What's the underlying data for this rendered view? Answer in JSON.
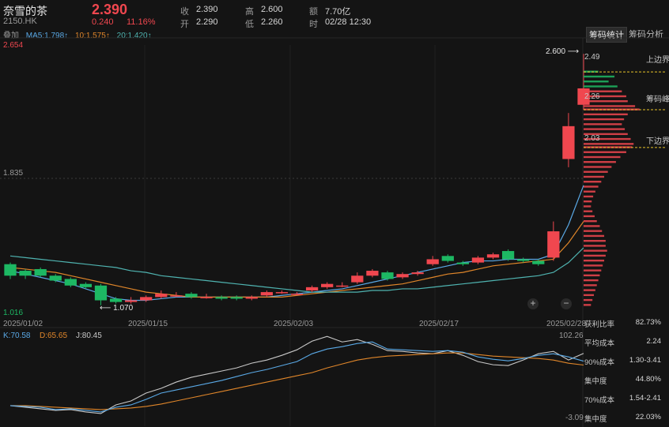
{
  "header": {
    "name": "奈雪的茶",
    "code": "2150.HK",
    "price": "2.390",
    "change": "0.240",
    "change_pct": "11.16%",
    "overlay_label": "叠加"
  },
  "quote": {
    "close_label": "收",
    "close": "2.390",
    "open_label": "开",
    "open": "2.290",
    "high_label": "高",
    "high": "2.600",
    "low_label": "低",
    "low": "2.260",
    "amount_label": "额",
    "amount": "7.70亿",
    "time_label": "时",
    "time": "02/28 12:30"
  },
  "ma": {
    "ma5": "MA5:1.798↑",
    "ma10": "10:1.575↑",
    "ma20": "20:1.420↑"
  },
  "tabs": {
    "chips": "筹码统计",
    "analysis": "筹码分析"
  },
  "axis": {
    "y_top": "2.654",
    "y_mid": "1.835",
    "y_bottom": "1.016",
    "high_marker": "2.600",
    "low_marker": "1.070",
    "dates": [
      "2025/01/02",
      "2025/01/15",
      "2025/02/03",
      "2025/02/17",
      "2025/02/28"
    ]
  },
  "chips": {
    "upper_price": "2.49",
    "upper_label": "上边界",
    "peak_price": "2.26",
    "peak_label": "筹码峰",
    "lower_price": "2.03",
    "lower_label": "下边界"
  },
  "stats": [
    {
      "label": "获利比率",
      "value": "82.73%"
    },
    {
      "label": "平均成本",
      "value": "2.24"
    },
    {
      "label": "90%成本",
      "value": "1.30-3.41"
    },
    {
      "label": "集中度",
      "value": "44.80%"
    },
    {
      "label": "70%成本",
      "value": "1.54-2.41"
    },
    {
      "label": "集中度",
      "value": "22.03%"
    }
  ],
  "kdj": {
    "k": "K:70.58",
    "d": "D:65.65",
    "j": "J:80.45",
    "top": "102.26",
    "bottom": "-3.09"
  },
  "colors": {
    "up": "#f0474f",
    "down": "#1db863",
    "ma5": "#5aa9e6",
    "ma10": "#e0862a",
    "ma20": "#4fb3b0"
  },
  "chart_data": {
    "type": "candlestick",
    "title": "奈雪的茶 2150.HK",
    "ylim": [
      1.016,
      2.654
    ],
    "candles": [
      {
        "o": 1.32,
        "c": 1.25,
        "h": 1.33,
        "l": 1.23
      },
      {
        "o": 1.28,
        "c": 1.25,
        "h": 1.29,
        "l": 1.23
      },
      {
        "o": 1.29,
        "c": 1.25,
        "h": 1.3,
        "l": 1.24
      },
      {
        "o": 1.25,
        "c": 1.22,
        "h": 1.26,
        "l": 1.21
      },
      {
        "o": 1.23,
        "c": 1.19,
        "h": 1.24,
        "l": 1.18
      },
      {
        "o": 1.2,
        "c": 1.18,
        "h": 1.21,
        "l": 1.17
      },
      {
        "o": 1.19,
        "c": 1.1,
        "h": 1.2,
        "l": 1.07
      },
      {
        "o": 1.11,
        "c": 1.09,
        "h": 1.12,
        "l": 1.08
      },
      {
        "o": 1.09,
        "c": 1.1,
        "h": 1.12,
        "l": 1.08
      },
      {
        "o": 1.1,
        "c": 1.12,
        "h": 1.13,
        "l": 1.09
      },
      {
        "o": 1.12,
        "c": 1.14,
        "h": 1.16,
        "l": 1.11
      },
      {
        "o": 1.13,
        "c": 1.13,
        "h": 1.15,
        "l": 1.12
      },
      {
        "o": 1.14,
        "c": 1.12,
        "h": 1.15,
        "l": 1.11
      },
      {
        "o": 1.12,
        "c": 1.12,
        "h": 1.14,
        "l": 1.11
      },
      {
        "o": 1.12,
        "c": 1.11,
        "h": 1.13,
        "l": 1.1
      },
      {
        "o": 1.12,
        "c": 1.11,
        "h": 1.13,
        "l": 1.1
      },
      {
        "o": 1.11,
        "c": 1.12,
        "h": 1.13,
        "l": 1.1
      },
      {
        "o": 1.13,
        "c": 1.15,
        "h": 1.16,
        "l": 1.12
      },
      {
        "o": 1.15,
        "c": 1.15,
        "h": 1.16,
        "l": 1.14
      },
      {
        "o": 1.14,
        "c": 1.14,
        "h": 1.15,
        "l": 1.13
      },
      {
        "o": 1.16,
        "c": 1.18,
        "h": 1.19,
        "l": 1.15
      },
      {
        "o": 1.18,
        "c": 1.2,
        "h": 1.21,
        "l": 1.17
      },
      {
        "o": 1.19,
        "c": 1.19,
        "h": 1.21,
        "l": 1.18
      },
      {
        "o": 1.21,
        "c": 1.25,
        "h": 1.27,
        "l": 1.2
      },
      {
        "o": 1.25,
        "c": 1.28,
        "h": 1.29,
        "l": 1.24
      },
      {
        "o": 1.27,
        "c": 1.23,
        "h": 1.28,
        "l": 1.22
      },
      {
        "o": 1.24,
        "c": 1.26,
        "h": 1.27,
        "l": 1.23
      },
      {
        "o": 1.26,
        "c": 1.27,
        "h": 1.28,
        "l": 1.25
      },
      {
        "o": 1.32,
        "c": 1.35,
        "h": 1.37,
        "l": 1.31
      },
      {
        "o": 1.37,
        "c": 1.34,
        "h": 1.38,
        "l": 1.33
      },
      {
        "o": 1.33,
        "c": 1.32,
        "h": 1.34,
        "l": 1.31
      },
      {
        "o": 1.33,
        "c": 1.36,
        "h": 1.37,
        "l": 1.32
      },
      {
        "o": 1.36,
        "c": 1.38,
        "h": 1.39,
        "l": 1.35
      },
      {
        "o": 1.4,
        "c": 1.35,
        "h": 1.41,
        "l": 1.34
      },
      {
        "o": 1.35,
        "c": 1.34,
        "h": 1.36,
        "l": 1.33
      },
      {
        "o": 1.34,
        "c": 1.32,
        "h": 1.35,
        "l": 1.31
      },
      {
        "o": 1.36,
        "c": 1.52,
        "h": 1.58,
        "l": 1.34
      },
      {
        "o": 1.96,
        "c": 2.16,
        "h": 2.24,
        "l": 1.91
      },
      {
        "o": 2.29,
        "c": 2.39,
        "h": 2.6,
        "l": 2.26
      }
    ],
    "ma_lines": {
      "MA5": [
        1.28,
        1.26,
        1.24,
        1.22,
        1.2,
        1.17,
        1.14,
        1.11,
        1.1,
        1.1,
        1.11,
        1.12,
        1.12,
        1.12,
        1.12,
        1.12,
        1.12,
        1.12,
        1.13,
        1.14,
        1.15,
        1.16,
        1.17,
        1.19,
        1.21,
        1.23,
        1.25,
        1.27,
        1.29,
        1.31,
        1.33,
        1.34,
        1.34,
        1.35,
        1.35,
        1.35,
        1.38,
        1.56,
        1.8
      ],
      "MA10": [
        1.3,
        1.29,
        1.28,
        1.27,
        1.25,
        1.23,
        1.21,
        1.19,
        1.17,
        1.15,
        1.14,
        1.13,
        1.12,
        1.12,
        1.12,
        1.12,
        1.12,
        1.12,
        1.12,
        1.13,
        1.14,
        1.15,
        1.16,
        1.17,
        1.18,
        1.19,
        1.2,
        1.22,
        1.24,
        1.26,
        1.27,
        1.29,
        1.31,
        1.32,
        1.33,
        1.34,
        1.35,
        1.45,
        1.58
      ],
      "MA20": [
        1.37,
        1.36,
        1.35,
        1.34,
        1.33,
        1.32,
        1.31,
        1.3,
        1.28,
        1.27,
        1.25,
        1.24,
        1.23,
        1.22,
        1.21,
        1.2,
        1.19,
        1.18,
        1.17,
        1.16,
        1.15,
        1.15,
        1.15,
        1.15,
        1.16,
        1.16,
        1.17,
        1.17,
        1.18,
        1.19,
        1.2,
        1.21,
        1.22,
        1.23,
        1.24,
        1.25,
        1.27,
        1.33,
        1.42
      ]
    },
    "kdj_series": {
      "ylim": [
        -3.09,
        102.26
      ],
      "K": [
        14,
        13,
        12,
        9,
        10,
        8,
        6,
        12,
        15,
        22,
        30,
        34,
        38,
        42,
        46,
        51,
        56,
        60,
        65,
        70,
        80,
        86,
        89,
        93,
        95,
        86,
        85,
        84,
        83,
        84,
        82,
        76,
        73,
        71,
        74,
        78,
        80,
        76,
        70.58
      ],
      "D": [
        14,
        14,
        13,
        12,
        11,
        10,
        9,
        10,
        11,
        13,
        16,
        20,
        24,
        28,
        32,
        36,
        40,
        44,
        48,
        52,
        56,
        62,
        67,
        72,
        75,
        77,
        78,
        79,
        80,
        81,
        81,
        79,
        77,
        76,
        75,
        74,
        72,
        68,
        65.65
      ],
      "J": [
        14,
        12,
        10,
        8,
        9,
        6,
        4,
        15,
        20,
        30,
        36,
        44,
        50,
        54,
        58,
        62,
        68,
        72,
        78,
        85,
        96,
        102,
        95,
        98,
        92,
        84,
        83,
        81,
        80,
        84,
        78,
        70,
        66,
        65,
        72,
        80,
        83,
        72,
        80.45
      ]
    },
    "chip_profile": [
      [
        2.49,
        20
      ],
      [
        2.46,
        42
      ],
      [
        2.43,
        34
      ],
      [
        2.4,
        46
      ],
      [
        2.37,
        52
      ],
      [
        2.34,
        58
      ],
      [
        2.31,
        60
      ],
      [
        2.28,
        70
      ],
      [
        2.26,
        76
      ],
      [
        2.23,
        60
      ],
      [
        2.2,
        55
      ],
      [
        2.17,
        52
      ],
      [
        2.14,
        56
      ],
      [
        2.11,
        60
      ],
      [
        2.08,
        64
      ],
      [
        2.05,
        68
      ],
      [
        2.03,
        66
      ],
      [
        2.0,
        58
      ],
      [
        1.97,
        50
      ],
      [
        1.94,
        44
      ],
      [
        1.91,
        38
      ],
      [
        1.88,
        33
      ],
      [
        1.85,
        28
      ],
      [
        1.82,
        24
      ],
      [
        1.79,
        20
      ],
      [
        1.76,
        16
      ],
      [
        1.73,
        13
      ],
      [
        1.7,
        11
      ],
      [
        1.67,
        10
      ],
      [
        1.64,
        12
      ],
      [
        1.61,
        15
      ],
      [
        1.58,
        18
      ],
      [
        1.55,
        22
      ],
      [
        1.52,
        25
      ],
      [
        1.49,
        28
      ],
      [
        1.46,
        30
      ],
      [
        1.43,
        30
      ],
      [
        1.4,
        32
      ],
      [
        1.37,
        30
      ],
      [
        1.34,
        28
      ],
      [
        1.31,
        26
      ],
      [
        1.28,
        24
      ],
      [
        1.25,
        22
      ],
      [
        1.22,
        20
      ],
      [
        1.19,
        18
      ],
      [
        1.16,
        16
      ],
      [
        1.13,
        14
      ],
      [
        1.1,
        12
      ],
      [
        1.07,
        10
      ]
    ]
  }
}
